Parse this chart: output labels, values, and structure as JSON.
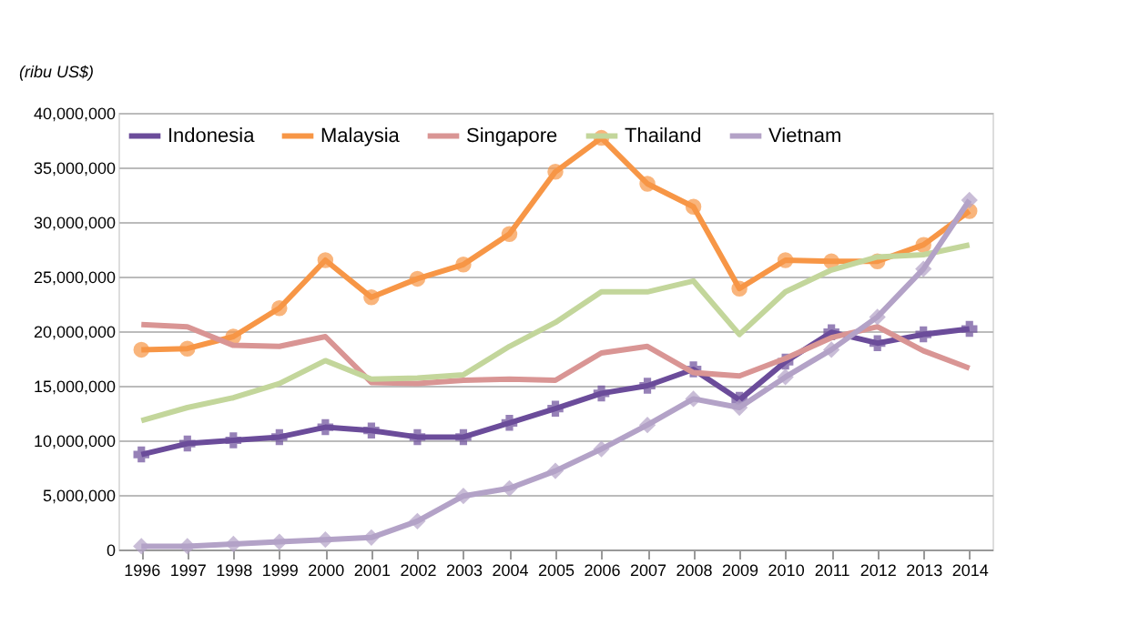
{
  "chart_data": {
    "type": "line",
    "ylabel": "(ribu US$)",
    "categories": [
      "1996",
      "1997",
      "1998",
      "1999",
      "2000",
      "2001",
      "2002",
      "2003",
      "2004",
      "2005",
      "2006",
      "2007",
      "2008",
      "2009",
      "2010",
      "2011",
      "2012",
      "2013",
      "2014"
    ],
    "series": [
      {
        "name": "Indonesia",
        "color": "#6b4c9a",
        "marker": "cross",
        "values": [
          8700000,
          9700000,
          10000000,
          10300000,
          11200000,
          10900000,
          10300000,
          10300000,
          11600000,
          12900000,
          14300000,
          15000000,
          16500000,
          13700000,
          17200000,
          19900000,
          18900000,
          19700000,
          20200000
        ]
      },
      {
        "name": "Malaysia",
        "color": "#f79646",
        "marker": "circle",
        "values": [
          18300000,
          18400000,
          19500000,
          22100000,
          26500000,
          23100000,
          24800000,
          26100000,
          28900000,
          34600000,
          37700000,
          33500000,
          31400000,
          23900000,
          26500000,
          26400000,
          26400000,
          27900000,
          31000000
        ]
      },
      {
        "name": "Singapore",
        "color": "#d99594",
        "marker": "none",
        "values": [
          20600000,
          20400000,
          18700000,
          18600000,
          19500000,
          15300000,
          15200000,
          15500000,
          15600000,
          15500000,
          18000000,
          18600000,
          16200000,
          15900000,
          17500000,
          19400000,
          20400000,
          18200000,
          16600000
        ]
      },
      {
        "name": "Thailand",
        "color": "#c3d69b",
        "marker": "none",
        "values": [
          11800000,
          13000000,
          13900000,
          15200000,
          17300000,
          15600000,
          15700000,
          16000000,
          18600000,
          20800000,
          23600000,
          23600000,
          24600000,
          19700000,
          23600000,
          25600000,
          26800000,
          27000000,
          27900000
        ]
      },
      {
        "name": "Vietnam",
        "color": "#b3a2c7",
        "marker": "diamond",
        "values": [
          300000,
          300000,
          500000,
          700000,
          900000,
          1100000,
          2600000,
          4900000,
          5600000,
          7200000,
          9200000,
          11400000,
          13800000,
          13000000,
          15800000,
          18300000,
          21300000,
          25700000,
          32000000
        ]
      }
    ],
    "ylim": [
      0,
      40000000
    ],
    "yticks": [
      0,
      {
        "value": 5000000,
        "label": "5,000,000"
      },
      {
        "value": 10000000,
        "label": "10,000,000"
      },
      {
        "value": 15000000,
        "label": "15,000,000"
      },
      {
        "value": 20000000,
        "label": "20,000,000"
      },
      {
        "value": 25000000,
        "label": "25,000,000"
      },
      {
        "value": 30000000,
        "label": "30,000,000"
      },
      {
        "value": 35000000,
        "label": "35,000,000"
      },
      {
        "value": 40000000,
        "label": "40,000,000"
      }
    ],
    "grid": "y",
    "legend": "top",
    "line_style": "solid"
  }
}
